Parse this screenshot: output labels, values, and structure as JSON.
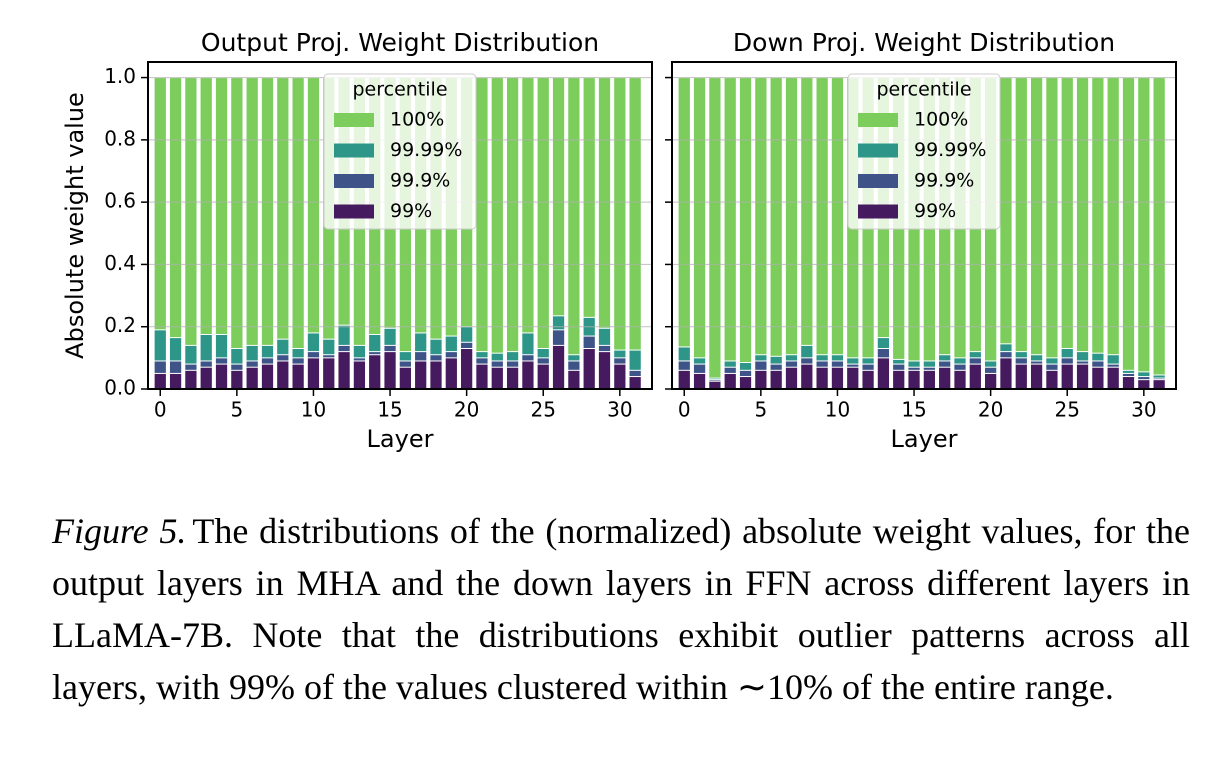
{
  "chart_data": [
    {
      "type": "bar",
      "title": "Output Proj. Weight Distribution",
      "x_label": "Layer",
      "y_label": "Absolute weight value",
      "x": [
        0,
        1,
        2,
        3,
        4,
        5,
        6,
        7,
        8,
        9,
        10,
        11,
        12,
        13,
        14,
        15,
        16,
        17,
        18,
        19,
        20,
        21,
        22,
        23,
        24,
        25,
        26,
        27,
        28,
        29,
        30,
        31
      ],
      "xlim": [
        -0.8,
        32.1
      ],
      "xticks": [
        0,
        5,
        10,
        15,
        20,
        25,
        30
      ],
      "ylim": [
        0,
        1.05
      ],
      "yticks": [
        {
          "value": 0,
          "label": "0.0"
        },
        {
          "value": 0.2,
          "label": "0.2"
        },
        {
          "value": 0.4,
          "label": "0.4"
        },
        {
          "value": 0.6,
          "label": "0.6"
        },
        {
          "value": 0.8,
          "label": "0.8"
        },
        {
          "value": 1,
          "label": "1.0"
        }
      ],
      "grid": true,
      "legend": "upper center",
      "legend_title": "percentile",
      "series": [
        {
          "name": "100%",
          "color": "#7ccd5c",
          "values": [
            1,
            1,
            1,
            1,
            1,
            1,
            1,
            1,
            1,
            1,
            1,
            1,
            1,
            1,
            1,
            1,
            1,
            1,
            1,
            1,
            1,
            1,
            1,
            1,
            1,
            1,
            1,
            1,
            1,
            1,
            1,
            1
          ]
        },
        {
          "name": "99.99%",
          "color": "#2d9688",
          "values": [
            0.19,
            0.165,
            0.14,
            0.175,
            0.175,
            0.13,
            0.14,
            0.14,
            0.16,
            0.13,
            0.18,
            0.16,
            0.205,
            0.14,
            0.175,
            0.195,
            0.12,
            0.18,
            0.16,
            0.17,
            0.2,
            0.12,
            0.115,
            0.12,
            0.18,
            0.13,
            0.235,
            0.11,
            0.23,
            0.195,
            0.125,
            0.125
          ]
        },
        {
          "name": "99.9%",
          "color": "#3e5488",
          "values": [
            0.09,
            0.09,
            0.08,
            0.09,
            0.1,
            0.08,
            0.09,
            0.1,
            0.11,
            0.1,
            0.12,
            0.11,
            0.14,
            0.1,
            0.12,
            0.14,
            0.09,
            0.12,
            0.11,
            0.12,
            0.15,
            0.1,
            0.09,
            0.09,
            0.11,
            0.1,
            0.19,
            0.09,
            0.17,
            0.14,
            0.1,
            0.06
          ]
        },
        {
          "name": "99%",
          "color": "#461a5e",
          "values": [
            0.05,
            0.05,
            0.06,
            0.07,
            0.08,
            0.06,
            0.07,
            0.08,
            0.09,
            0.08,
            0.1,
            0.1,
            0.12,
            0.09,
            0.11,
            0.12,
            0.07,
            0.09,
            0.09,
            0.1,
            0.13,
            0.08,
            0.07,
            0.07,
            0.09,
            0.08,
            0.14,
            0.06,
            0.13,
            0.12,
            0.08,
            0.04
          ]
        }
      ]
    },
    {
      "type": "bar",
      "title": "Down Proj. Weight Distribution",
      "x_label": "Layer",
      "x": [
        0,
        1,
        2,
        3,
        4,
        5,
        6,
        7,
        8,
        9,
        10,
        11,
        12,
        13,
        14,
        15,
        16,
        17,
        18,
        19,
        20,
        21,
        22,
        23,
        24,
        25,
        26,
        27,
        28,
        29,
        30,
        31
      ],
      "xlim": [
        -0.8,
        32.1
      ],
      "xticks": [
        0,
        5,
        10,
        15,
        20,
        25,
        30
      ],
      "ylim": [
        0,
        1.05
      ],
      "yticks": [
        0,
        0.2,
        0.4,
        0.6,
        0.8,
        1
      ],
      "grid": true,
      "legend": "upper center",
      "legend_title": "percentile",
      "series": [
        {
          "name": "100%",
          "color": "#7ccd5c",
          "values": [
            1,
            1,
            1,
            1,
            1,
            1,
            1,
            1,
            1,
            1,
            1,
            1,
            1,
            1,
            1,
            1,
            1,
            1,
            1,
            1,
            1,
            1,
            1,
            1,
            1,
            1,
            1,
            1,
            1,
            1,
            1,
            1
          ]
        },
        {
          "name": "99.99%",
          "color": "#2d9688",
          "values": [
            0.135,
            0.1,
            0.035,
            0.09,
            0.085,
            0.11,
            0.105,
            0.11,
            0.14,
            0.11,
            0.11,
            0.1,
            0.1,
            0.165,
            0.095,
            0.09,
            0.09,
            0.11,
            0.1,
            0.12,
            0.09,
            0.145,
            0.12,
            0.11,
            0.1,
            0.13,
            0.12,
            0.115,
            0.11,
            0.06,
            0.055,
            0.045
          ]
        },
        {
          "name": "99.9%",
          "color": "#3e5488",
          "values": [
            0.09,
            0.08,
            0.03,
            0.07,
            0.06,
            0.09,
            0.08,
            0.09,
            0.1,
            0.09,
            0.09,
            0.08,
            0.08,
            0.13,
            0.08,
            0.07,
            0.07,
            0.09,
            0.08,
            0.1,
            0.07,
            0.12,
            0.1,
            0.09,
            0.08,
            0.1,
            0.09,
            0.09,
            0.08,
            0.05,
            0.04,
            0.035
          ]
        },
        {
          "name": "99%",
          "color": "#461a5e",
          "values": [
            0.06,
            0.05,
            0.025,
            0.05,
            0.04,
            0.06,
            0.06,
            0.07,
            0.08,
            0.07,
            0.07,
            0.07,
            0.06,
            0.1,
            0.06,
            0.06,
            0.06,
            0.07,
            0.06,
            0.08,
            0.05,
            0.1,
            0.08,
            0.08,
            0.06,
            0.08,
            0.08,
            0.07,
            0.07,
            0.04,
            0.03,
            0.03
          ]
        }
      ]
    }
  ],
  "caption": {
    "label": "Figure 5.",
    "text": "The distributions of the (normalized) absolute weight values, for the output layers in MHA and the down layers in FFN across different layers in LLaMA-7B. Note that the distributions exhibit outlier patterns across all layers, with 99% of the values clustered within ∼10% of the entire range."
  }
}
